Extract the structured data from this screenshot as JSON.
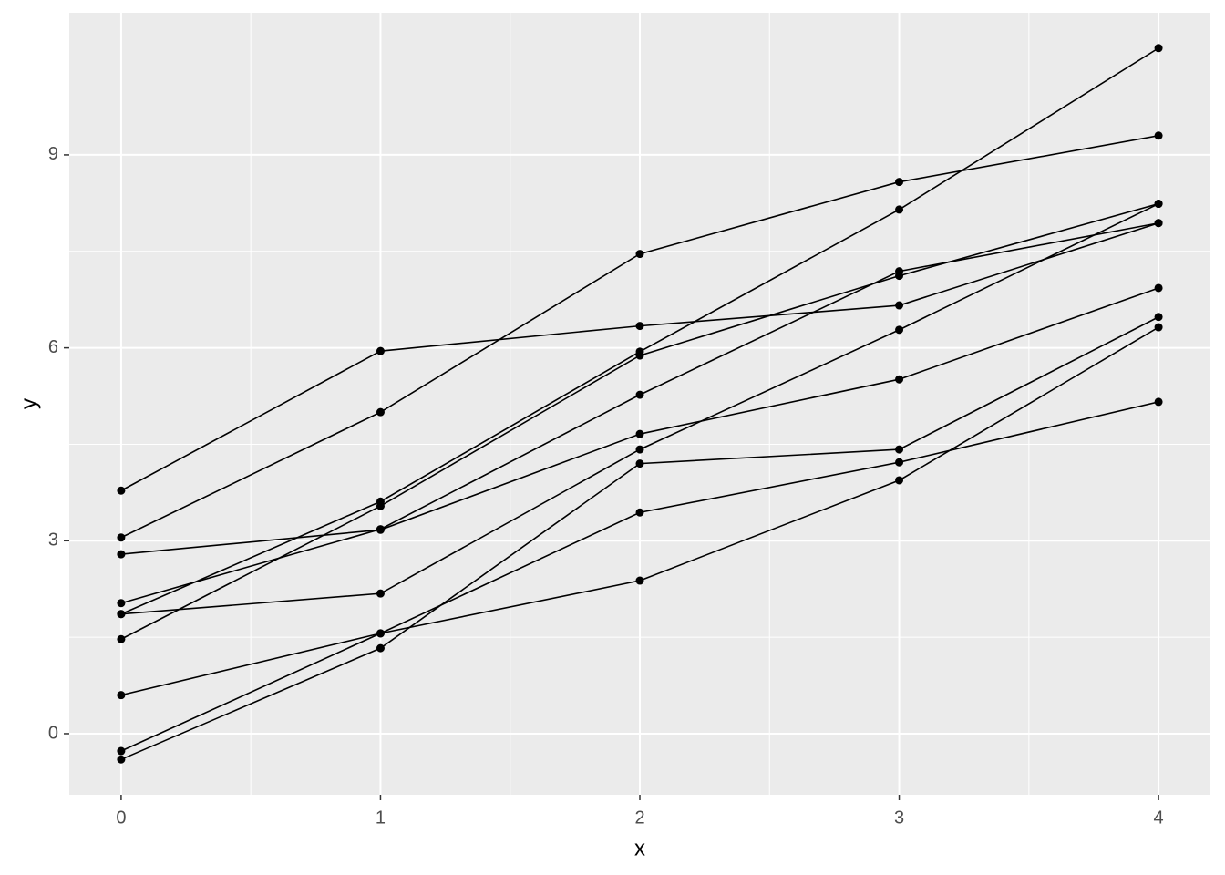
{
  "chart_data": {
    "type": "line",
    "x_label": "x",
    "y_label": "y",
    "x": [
      0,
      1,
      2,
      3,
      4
    ],
    "series": [
      {
        "color": "#000000",
        "values": [
          3.78,
          5.95,
          6.34,
          6.66,
          7.94
        ]
      },
      {
        "color": "#000000",
        "values": [
          3.05,
          5.0,
          7.46,
          8.58,
          9.3
        ]
      },
      {
        "color": "#000000",
        "values": [
          2.79,
          3.17,
          4.66,
          5.51,
          6.93
        ]
      },
      {
        "color": "#000000",
        "values": [
          2.03,
          3.18,
          5.27,
          7.19,
          7.94
        ]
      },
      {
        "color": "#000000",
        "values": [
          1.86,
          3.61,
          5.94,
          8.15,
          10.66
        ]
      },
      {
        "color": "#000000",
        "values": [
          1.86,
          2.18,
          4.42,
          6.28,
          8.24
        ]
      },
      {
        "color": "#000000",
        "values": [
          1.47,
          3.54,
          5.88,
          7.12,
          8.24
        ]
      },
      {
        "color": "#000000",
        "values": [
          0.6,
          1.56,
          2.38,
          3.94,
          6.32
        ]
      },
      {
        "color": "#000000",
        "values": [
          -0.27,
          1.56,
          3.44,
          4.22,
          5.16
        ]
      },
      {
        "color": "#000000",
        "values": [
          -0.4,
          1.33,
          4.2,
          4.42,
          6.48
        ]
      }
    ],
    "xlim": [
      -0.2,
      4.2
    ],
    "ylim": [
      -0.95,
      11.21
    ],
    "xticks": [
      0,
      1,
      2,
      3,
      4
    ],
    "yticks": [
      0,
      3,
      6,
      9
    ],
    "grid": true
  }
}
